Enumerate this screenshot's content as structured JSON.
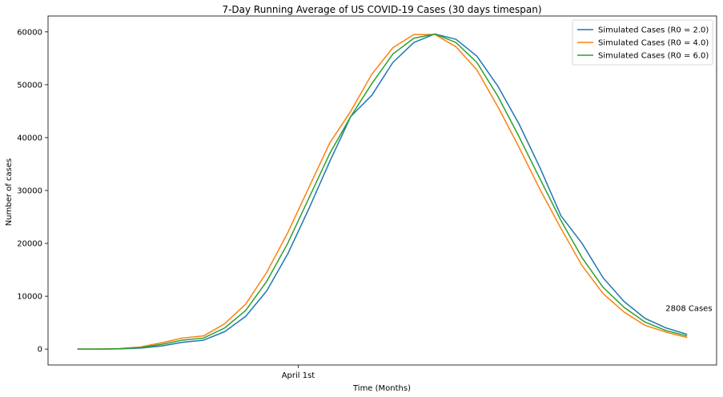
{
  "chart_data": {
    "type": "line",
    "title": "7-Day Running Average of US COVID-19 Cases (30 days timespan)",
    "xlabel": "Time (Months)",
    "ylabel": "Number of cases",
    "x_ticks": [
      {
        "x": 10.5,
        "label": "April 1st"
      }
    ],
    "x": [
      0,
      1,
      2,
      3,
      4,
      5,
      6,
      7,
      8,
      9,
      10,
      11,
      12,
      13,
      14,
      15,
      16,
      17,
      18,
      19,
      20,
      21,
      22,
      23,
      24,
      25,
      26,
      27,
      28,
      29
    ],
    "xlim": [
      -1.4,
      30.4
    ],
    "ylim": [
      -3000,
      63000
    ],
    "y_ticks": [
      0,
      10000,
      20000,
      30000,
      40000,
      50000,
      60000
    ],
    "grid": false,
    "legend_position": "top-right",
    "series": [
      {
        "name": "Simulated Cases (R0 = 2.0)",
        "color": "#1f77b4",
        "values": [
          0,
          0,
          50,
          200,
          600,
          1300,
          1700,
          3300,
          6200,
          11000,
          18000,
          26500,
          35500,
          44000,
          48000,
          54200,
          58000,
          59600,
          58600,
          55400,
          49700,
          42600,
          34300,
          25200,
          20000,
          13500,
          9000,
          5800,
          4000,
          2800
        ]
      },
      {
        "name": "Simulated Cases (R0 = 4.0)",
        "color": "#ff7f0e",
        "values": [
          0,
          0,
          100,
          400,
          1200,
          2100,
          2500,
          4800,
          8500,
          14500,
          22000,
          30500,
          39000,
          45000,
          52000,
          57000,
          59500,
          59500,
          57200,
          52800,
          45800,
          38200,
          30200,
          22800,
          15800,
          10500,
          7000,
          4500,
          3200,
          2200
        ]
      },
      {
        "name": "Simulated Cases (R0 = 6.0)",
        "color": "#2ca02c",
        "values": [
          0,
          0,
          80,
          300,
          900,
          1700,
          2100,
          4000,
          7300,
          12800,
          20000,
          28500,
          37000,
          44000,
          50200,
          55800,
          58800,
          59600,
          58000,
          54200,
          47800,
          40200,
          32200,
          24300,
          17300,
          11700,
          7900,
          5100,
          3500,
          2500
        ]
      }
    ],
    "annotations": [
      {
        "text": "2808 Cases",
        "x": 29,
        "y": 2808
      }
    ]
  }
}
